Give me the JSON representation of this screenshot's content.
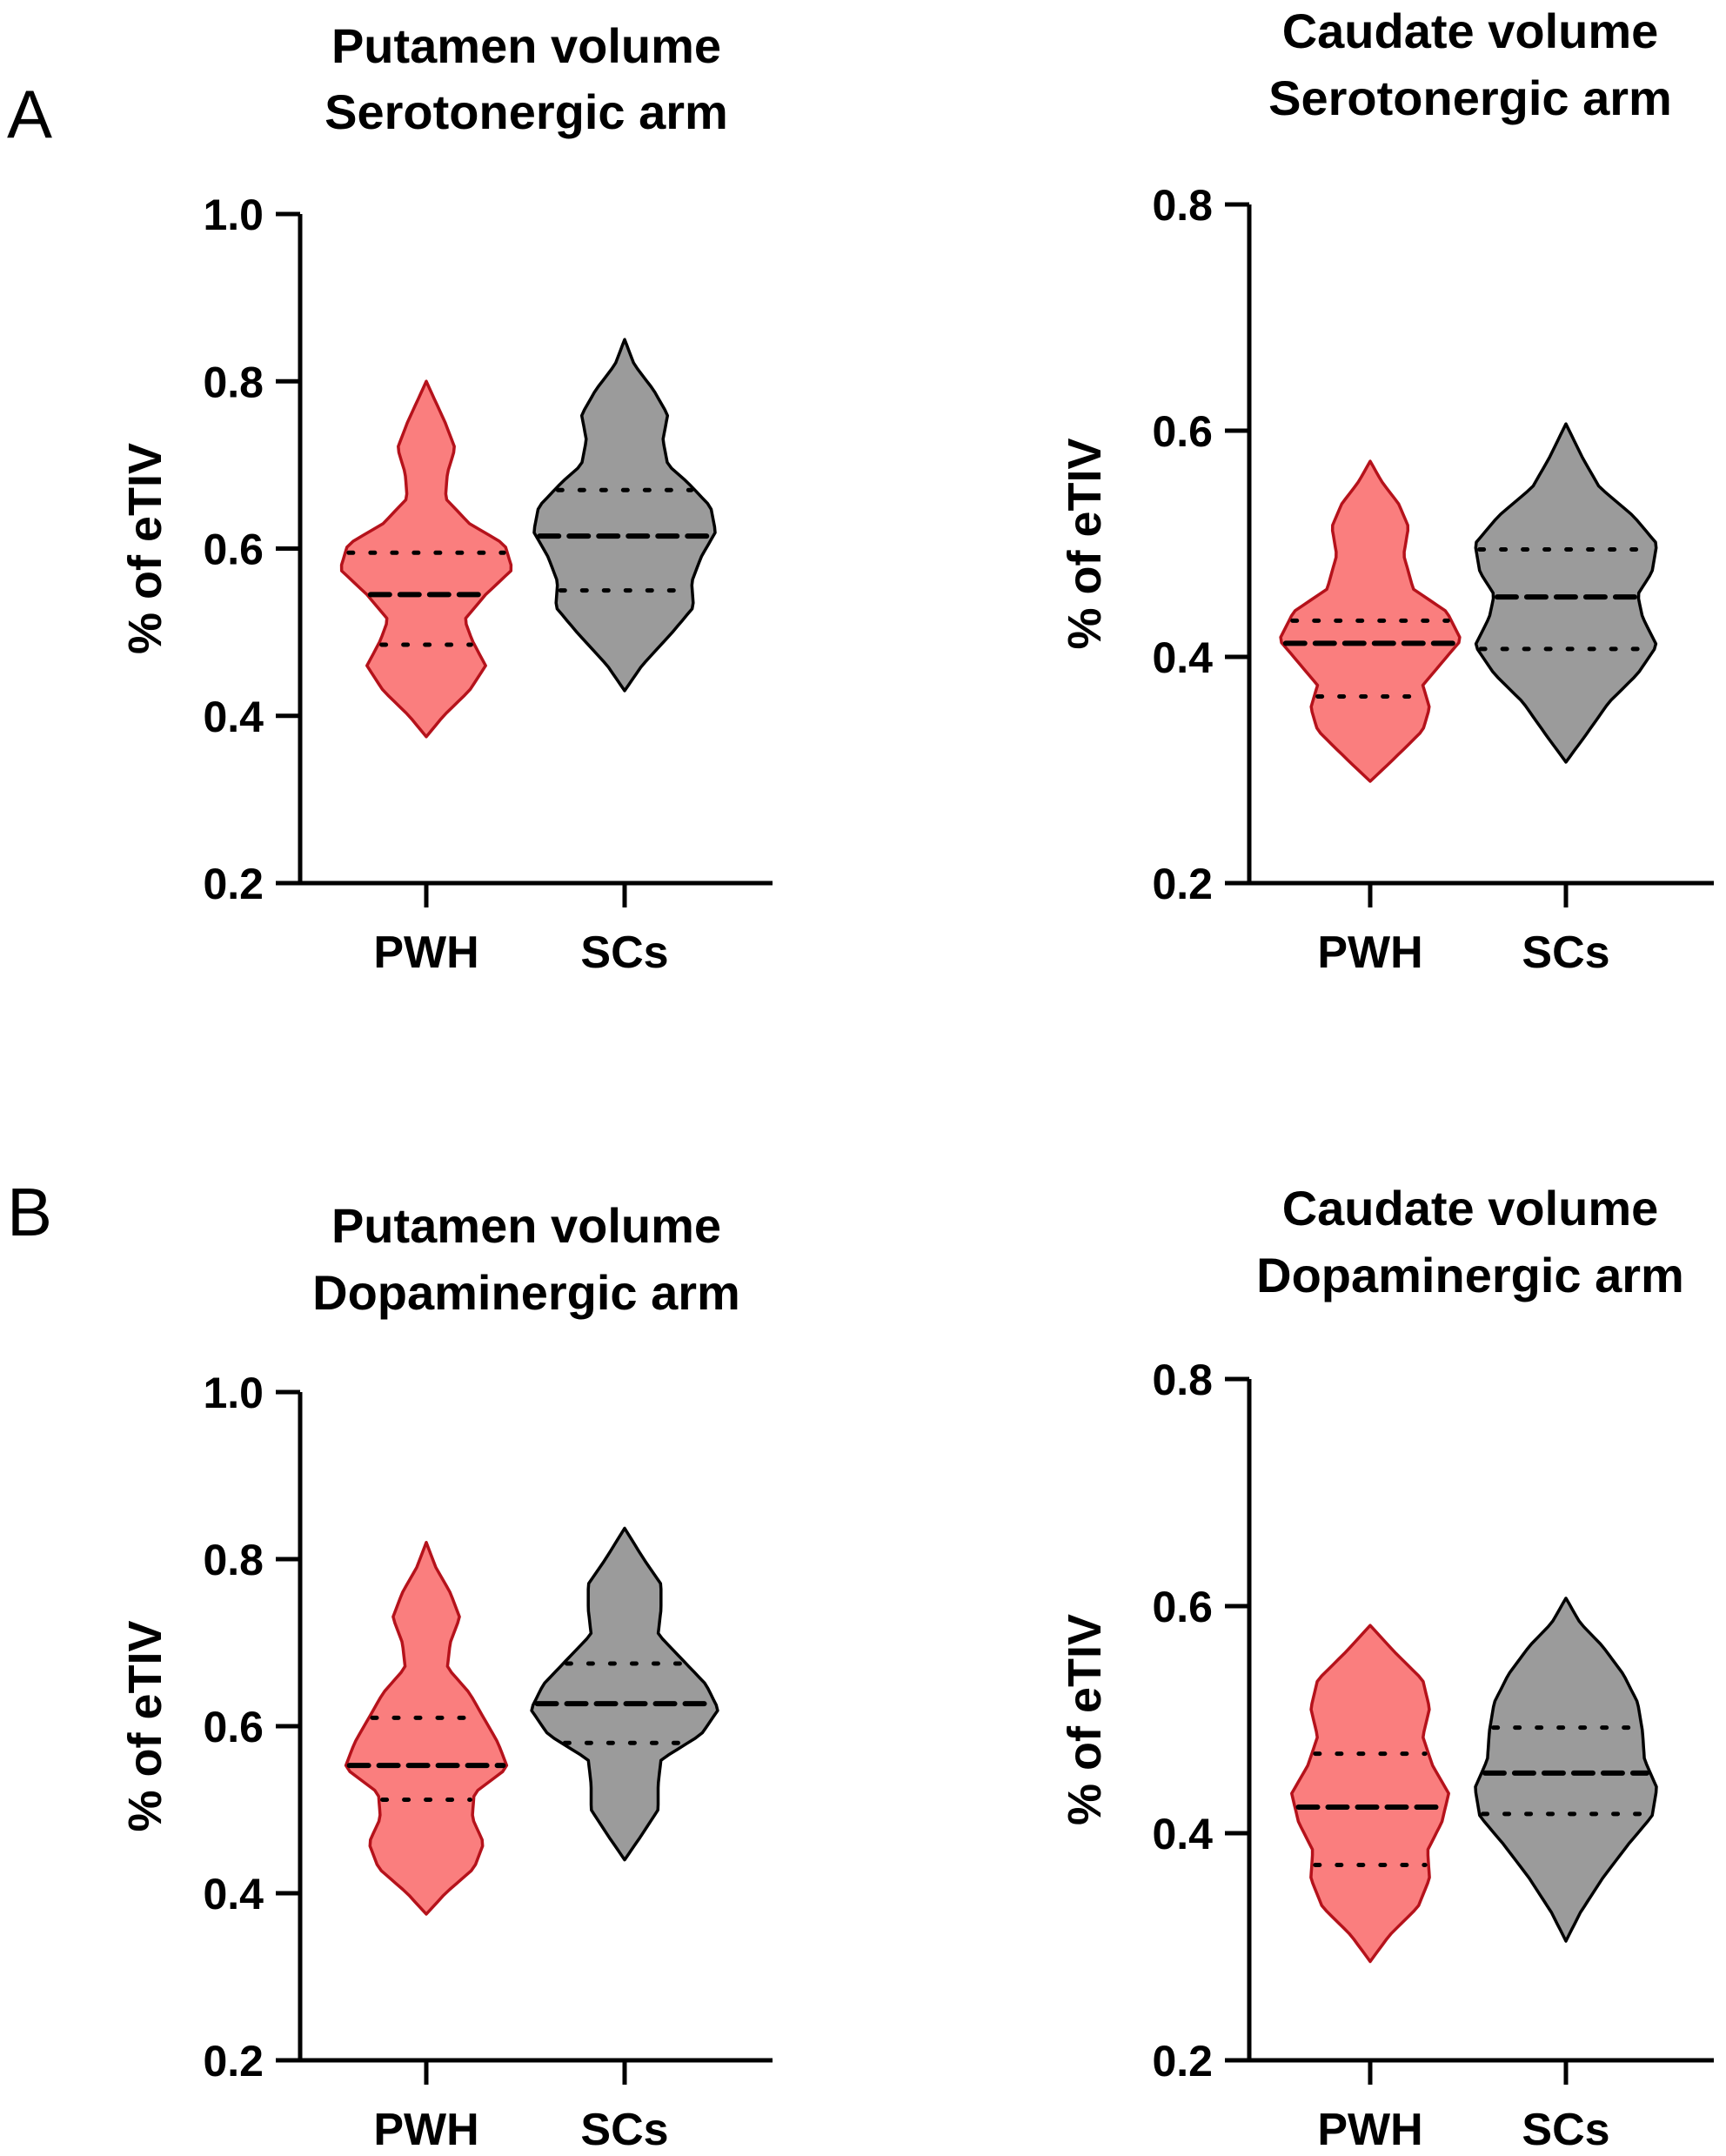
{
  "figure": {
    "panel_labels": [
      "A",
      "B"
    ],
    "colors": {
      "pwh_fill": "#fa7e7e",
      "pwh_stroke": "#b5121b",
      "scs_fill": "#9b9b9b",
      "scs_stroke": "#000000",
      "axis": "#000000",
      "text": "#000000"
    }
  },
  "chart_data": [
    {
      "type": "violin",
      "title": [
        "Putamen volume",
        "Serotonergic arm"
      ],
      "xlabel": "",
      "ylabel": "% of eTIV",
      "ylim": [
        0.2,
        1.0
      ],
      "yticks": [
        0.2,
        0.4,
        0.6,
        0.8,
        1.0
      ],
      "tick_labels": [
        "0.2",
        "0.4",
        "0.6",
        "0.8",
        "1.0"
      ],
      "categories": [
        "PWH",
        "SCs"
      ],
      "series": [
        {
          "category": "PWH",
          "median": 0.545,
          "q1": 0.485,
          "q3": 0.595,
          "min": 0.375,
          "max": 0.8,
          "density": [
            [
              0.375,
              0
            ],
            [
              0.4,
              0.18
            ],
            [
              0.43,
              0.45
            ],
            [
              0.46,
              0.62
            ],
            [
              0.49,
              0.48
            ],
            [
              0.515,
              0.4
            ],
            [
              0.545,
              0.62
            ],
            [
              0.575,
              0.9
            ],
            [
              0.605,
              0.82
            ],
            [
              0.63,
              0.45
            ],
            [
              0.66,
              0.2
            ],
            [
              0.69,
              0.22
            ],
            [
              0.72,
              0.3
            ],
            [
              0.75,
              0.2
            ],
            [
              0.78,
              0.08
            ],
            [
              0.8,
              0
            ]
          ]
        },
        {
          "category": "SCs",
          "median": 0.615,
          "q1": 0.55,
          "q3": 0.67,
          "min": 0.43,
          "max": 0.85,
          "density": [
            [
              0.43,
              0
            ],
            [
              0.46,
              0.18
            ],
            [
              0.5,
              0.5
            ],
            [
              0.53,
              0.72
            ],
            [
              0.56,
              0.7
            ],
            [
              0.59,
              0.8
            ],
            [
              0.62,
              0.95
            ],
            [
              0.65,
              0.9
            ],
            [
              0.68,
              0.65
            ],
            [
              0.7,
              0.45
            ],
            [
              0.73,
              0.4
            ],
            [
              0.76,
              0.45
            ],
            [
              0.79,
              0.3
            ],
            [
              0.82,
              0.1
            ],
            [
              0.85,
              0
            ]
          ]
        }
      ]
    },
    {
      "type": "violin",
      "title": [
        "Caudate volume",
        "Serotonergic arm"
      ],
      "xlabel": "",
      "ylabel": "% of eTIV",
      "ylim": [
        0.2,
        0.8
      ],
      "yticks": [
        0.2,
        0.4,
        0.6,
        0.8
      ],
      "tick_labels": [
        "0.2",
        "0.4",
        "0.6",
        "0.8"
      ],
      "categories": [
        "PWH",
        "SCs"
      ],
      "series": [
        {
          "category": "PWH",
          "median": 0.412,
          "q1": 0.365,
          "q3": 0.432,
          "min": 0.29,
          "max": 0.573,
          "density": [
            [
              0.29,
              0
            ],
            [
              0.31,
              0.25
            ],
            [
              0.335,
              0.55
            ],
            [
              0.355,
              0.62
            ],
            [
              0.375,
              0.55
            ],
            [
              0.395,
              0.75
            ],
            [
              0.415,
              0.95
            ],
            [
              0.44,
              0.8
            ],
            [
              0.46,
              0.45
            ],
            [
              0.49,
              0.35
            ],
            [
              0.515,
              0.4
            ],
            [
              0.535,
              0.3
            ],
            [
              0.555,
              0.12
            ],
            [
              0.573,
              0
            ]
          ]
        },
        {
          "category": "SCs",
          "median": 0.453,
          "q1": 0.407,
          "q3": 0.495,
          "min": 0.307,
          "max": 0.606,
          "density": [
            [
              0.307,
              0
            ],
            [
              0.33,
              0.2
            ],
            [
              0.36,
              0.45
            ],
            [
              0.385,
              0.75
            ],
            [
              0.41,
              0.95
            ],
            [
              0.435,
              0.8
            ],
            [
              0.455,
              0.75
            ],
            [
              0.475,
              0.9
            ],
            [
              0.5,
              0.95
            ],
            [
              0.525,
              0.7
            ],
            [
              0.55,
              0.35
            ],
            [
              0.575,
              0.18
            ],
            [
              0.606,
              0
            ]
          ]
        }
      ]
    },
    {
      "type": "violin",
      "title": [
        "Putamen volume",
        "Dopaminergic arm"
      ],
      "xlabel": "",
      "ylabel": "% of eTIV",
      "ylim": [
        0.2,
        1.0
      ],
      "yticks": [
        0.2,
        0.4,
        0.6,
        0.8,
        1.0
      ],
      "tick_labels": [
        "0.2",
        "0.4",
        "0.6",
        "0.8",
        "1.0"
      ],
      "categories": [
        "PWH",
        "SCs"
      ],
      "series": [
        {
          "category": "PWH",
          "median": 0.553,
          "q1": 0.512,
          "q3": 0.61,
          "min": 0.375,
          "max": 0.82,
          "density": [
            [
              0.375,
              0
            ],
            [
              0.4,
              0.2
            ],
            [
              0.43,
              0.5
            ],
            [
              0.46,
              0.6
            ],
            [
              0.49,
              0.48
            ],
            [
              0.52,
              0.5
            ],
            [
              0.55,
              0.85
            ],
            [
              0.58,
              0.75
            ],
            [
              0.61,
              0.6
            ],
            [
              0.64,
              0.45
            ],
            [
              0.67,
              0.22
            ],
            [
              0.7,
              0.25
            ],
            [
              0.73,
              0.35
            ],
            [
              0.76,
              0.25
            ],
            [
              0.79,
              0.1
            ],
            [
              0.82,
              0
            ]
          ]
        },
        {
          "category": "SCs",
          "median": 0.627,
          "q1": 0.58,
          "q3": 0.675,
          "min": 0.44,
          "max": 0.837,
          "density": [
            [
              0.44,
              0
            ],
            [
              0.47,
              0.18
            ],
            [
              0.5,
              0.35
            ],
            [
              0.53,
              0.35
            ],
            [
              0.56,
              0.38
            ],
            [
              0.59,
              0.8
            ],
            [
              0.62,
              0.98
            ],
            [
              0.65,
              0.85
            ],
            [
              0.68,
              0.6
            ],
            [
              0.71,
              0.35
            ],
            [
              0.74,
              0.38
            ],
            [
              0.77,
              0.38
            ],
            [
              0.8,
              0.2
            ],
            [
              0.837,
              0
            ]
          ]
        }
      ]
    },
    {
      "type": "violin",
      "title": [
        "Caudate volume",
        "Dopaminergic arm"
      ],
      "xlabel": "",
      "ylabel": "% of eTIV",
      "ylim": [
        0.2,
        0.8
      ],
      "yticks": [
        0.2,
        0.4,
        0.6,
        0.8
      ],
      "tick_labels": [
        "0.2",
        "0.4",
        "0.6",
        "0.8"
      ],
      "categories": [
        "PWH",
        "SCs"
      ],
      "series": [
        {
          "category": "PWH",
          "median": 0.423,
          "q1": 0.372,
          "q3": 0.47,
          "min": 0.287,
          "max": 0.583,
          "density": [
            [
              0.287,
              0
            ],
            [
              0.31,
              0.2
            ],
            [
              0.335,
              0.5
            ],
            [
              0.36,
              0.62
            ],
            [
              0.385,
              0.6
            ],
            [
              0.41,
              0.75
            ],
            [
              0.435,
              0.82
            ],
            [
              0.46,
              0.65
            ],
            [
              0.485,
              0.55
            ],
            [
              0.51,
              0.62
            ],
            [
              0.535,
              0.55
            ],
            [
              0.56,
              0.25
            ],
            [
              0.583,
              0
            ]
          ]
        },
        {
          "category": "SCs",
          "median": 0.453,
          "q1": 0.417,
          "q3": 0.493,
          "min": 0.305,
          "max": 0.607,
          "density": [
            [
              0.305,
              0
            ],
            [
              0.33,
              0.15
            ],
            [
              0.36,
              0.38
            ],
            [
              0.39,
              0.65
            ],
            [
              0.415,
              0.9
            ],
            [
              0.44,
              0.95
            ],
            [
              0.465,
              0.82
            ],
            [
              0.49,
              0.8
            ],
            [
              0.515,
              0.75
            ],
            [
              0.54,
              0.6
            ],
            [
              0.565,
              0.38
            ],
            [
              0.585,
              0.15
            ],
            [
              0.607,
              0
            ]
          ]
        }
      ]
    }
  ]
}
